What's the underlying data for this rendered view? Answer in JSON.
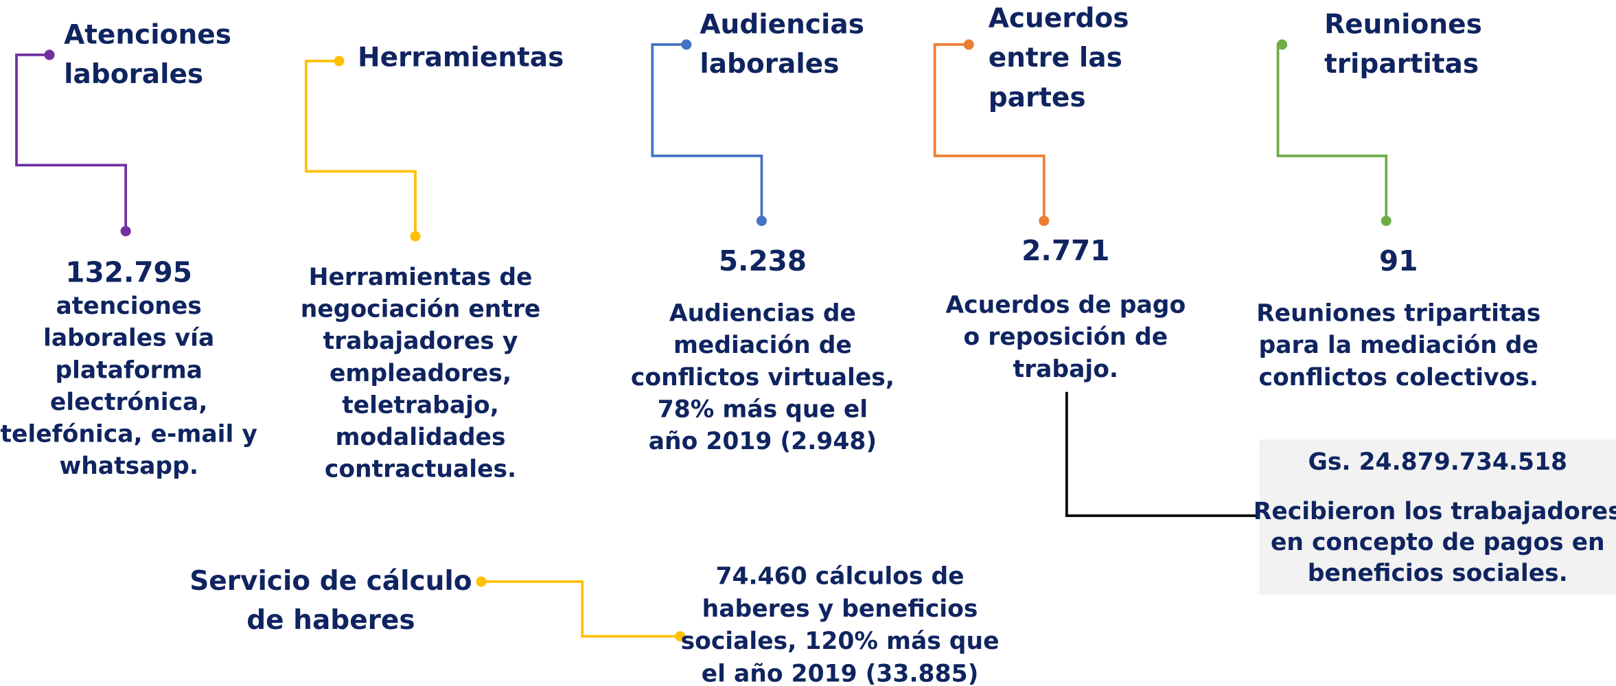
{
  "items": [
    {
      "title": [
        "Atenciones",
        "laborales"
      ],
      "value": "132.795",
      "description": [
        "atenciones",
        "laborales vía",
        "plataforma",
        "electrónica,",
        "telefónica, e-mail y",
        "whatsapp."
      ],
      "color": "#7030a0"
    },
    {
      "title": [
        "Herramientas"
      ],
      "description": [
        "Herramientas de",
        "negociación entre",
        "trabajadores y",
        "empleadores,",
        "teletrabajo,",
        "modalidades",
        "contractuales."
      ],
      "color": "#ffc000"
    },
    {
      "title": [
        "Audiencias",
        "laborales"
      ],
      "value": "5.238",
      "description": [
        "Audiencias de",
        "mediación de",
        "conflictos virtuales,",
        "78% más que el",
        "año 2019 (2.948)"
      ],
      "color": "#4472c4"
    },
    {
      "title": [
        "Acuerdos",
        "entre las",
        "partes"
      ],
      "value": "2.771",
      "description": [
        "Acuerdos de pago",
        "o reposición de",
        "trabajo."
      ],
      "color": "#ed7d31"
    },
    {
      "title": [
        "Reuniones",
        "tripartitas"
      ],
      "value": "91",
      "description": [
        "Reuniones tripartitas",
        "para la mediación de",
        "conflictos colectivos."
      ],
      "color": "#70ad47"
    }
  ],
  "calculation": {
    "title": [
      "Servicio de cálculo",
      "de haberes"
    ],
    "description": [
      "74.460 cálculos de",
      "haberes y beneficios",
      "sociales, 120% más que",
      "el año 2019 (33.885)"
    ],
    "color": "#ffc000"
  },
  "payments": {
    "value": "Gs. 24.879.734.518",
    "description": [
      "Recibieron los trabajadores",
      "en concepto de pagos en",
      "beneficios sociales."
    ]
  }
}
